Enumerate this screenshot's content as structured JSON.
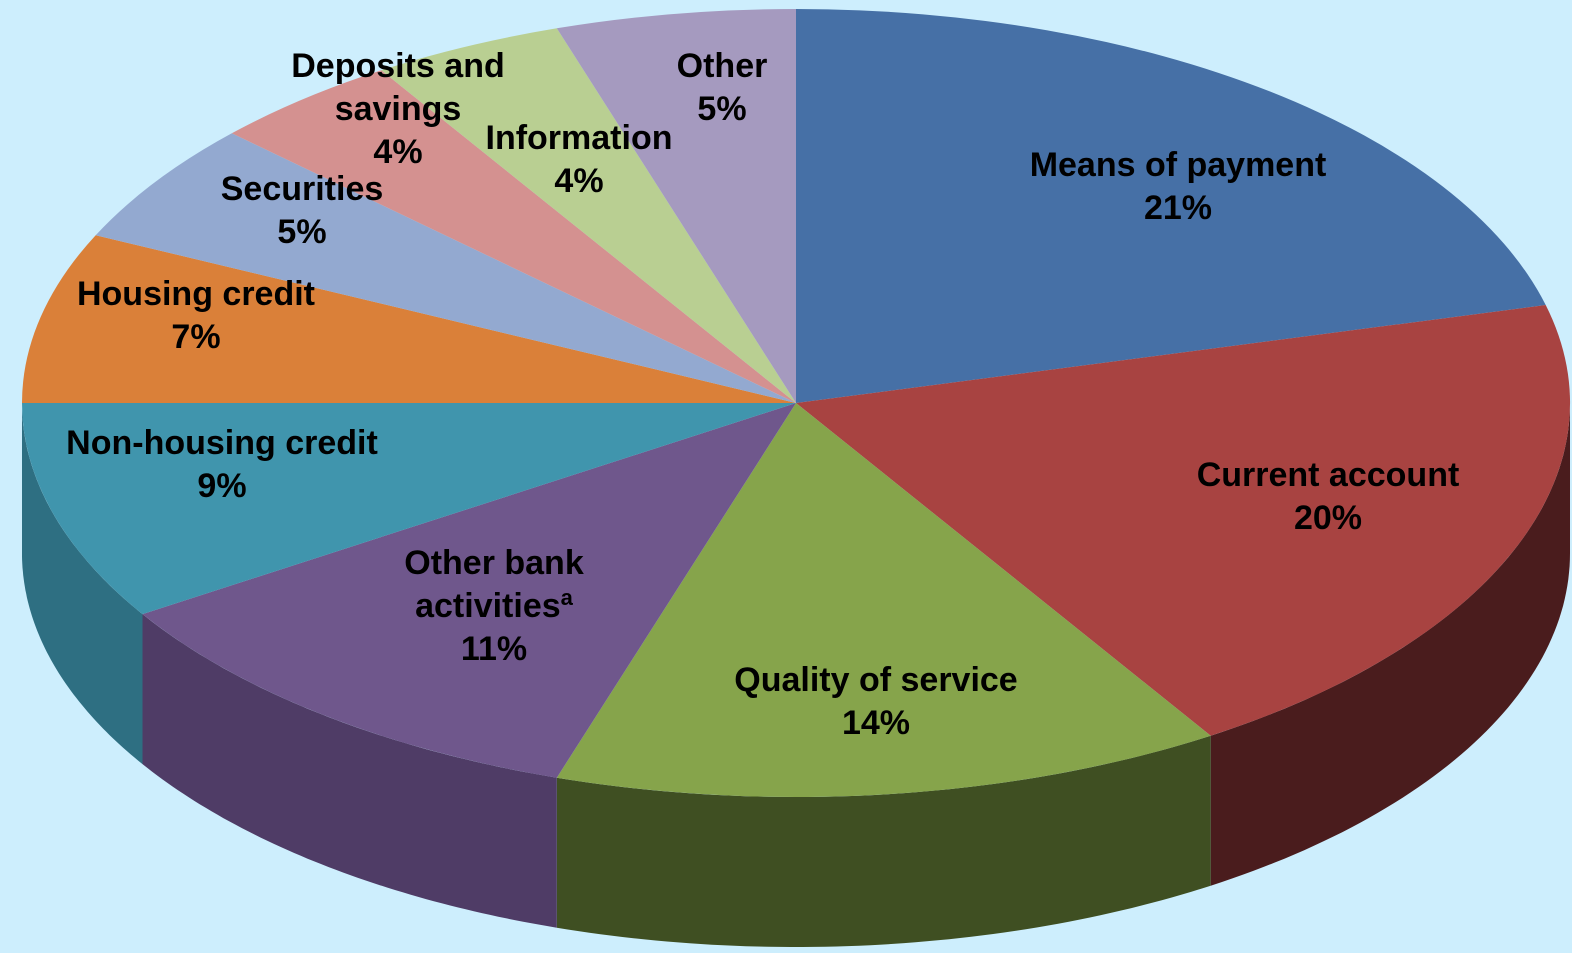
{
  "chart_data": {
    "type": "pie",
    "style": "3d-exploded-none",
    "background": "#cdeefd",
    "slices": [
      {
        "label_lines": [
          "Means of payment"
        ],
        "value_text": "21%",
        "value": 21,
        "color": "#4670a6",
        "side_color": "#2f4c72"
      },
      {
        "label_lines": [
          "Current account"
        ],
        "value_text": "20%",
        "value": 20,
        "color": "#a84341",
        "side_color": "#4a1c1d"
      },
      {
        "label_lines": [
          "Quality of service"
        ],
        "value_text": "14%",
        "value": 14,
        "color": "#86a44b",
        "side_color": "#3f4f22"
      },
      {
        "label_lines": [
          "Other bank",
          "activities"
        ],
        "label_sup": "a",
        "value_text": "11%",
        "value": 11,
        "color": "#6f578c",
        "side_color": "#4f3c66"
      },
      {
        "label_lines": [
          "Non-housing credit"
        ],
        "value_text": "9%",
        "value": 9,
        "color": "#4095ad",
        "side_color": "#2e6f82"
      },
      {
        "label_lines": [
          "Housing credit"
        ],
        "value_text": "7%",
        "value": 7,
        "color": "#da8039",
        "side_color": "#9b5a27"
      },
      {
        "label_lines": [
          "Securities"
        ],
        "value_text": "5%",
        "value": 5,
        "color": "#93a9d0",
        "side_color": "#6a7c9c"
      },
      {
        "label_lines": [
          "Deposits and",
          "savings"
        ],
        "value_text": "4%",
        "value": 4,
        "color": "#d49190",
        "side_color": "#9c6a69"
      },
      {
        "label_lines": [
          "Information"
        ],
        "value_text": "4%",
        "value": 4,
        "color": "#b9cf92",
        "side_color": "#87986a"
      },
      {
        "label_lines": [
          "Other"
        ],
        "value_text": "5%",
        "value": 5,
        "color": "#a59abf",
        "side_color": "#7a708f"
      }
    ]
  }
}
